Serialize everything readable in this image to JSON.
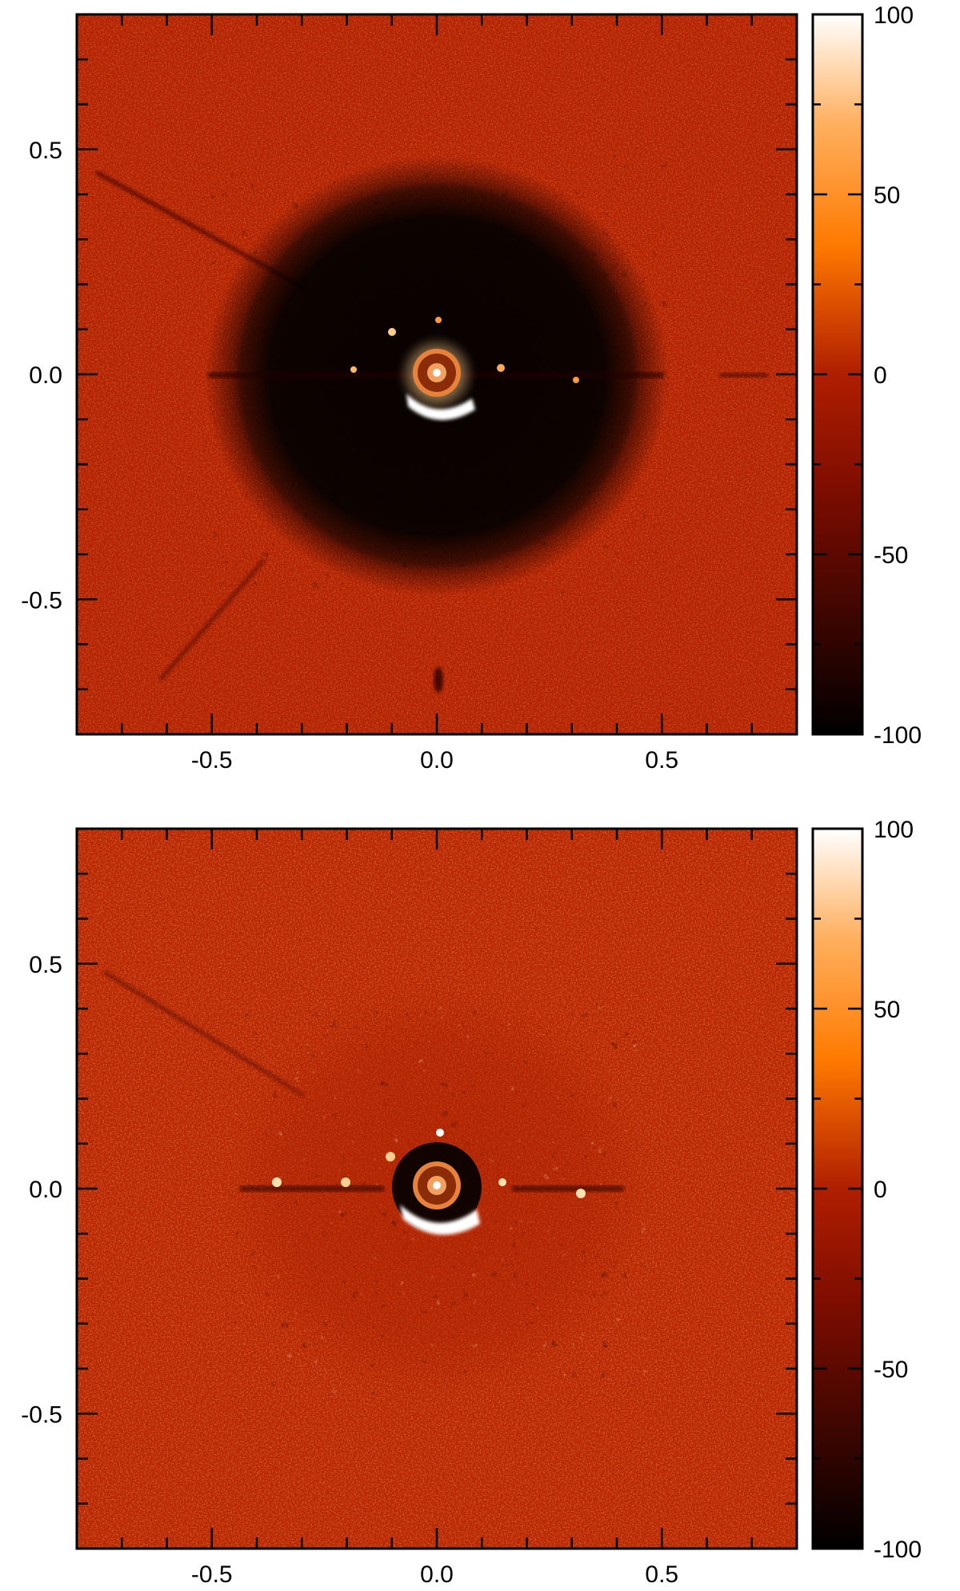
{
  "chart_data": [
    {
      "type": "heatmap",
      "colormap": "hot (black-red-orange-white)",
      "xlim": [
        -0.8,
        0.8
      ],
      "ylim": [
        -0.8,
        0.8
      ],
      "x_ticks": [
        -0.5,
        0.0,
        0.5
      ],
      "x_tick_labels": [
        "-0.5",
        "0.0",
        "0.5"
      ],
      "y_ticks": [
        0.5,
        0.0,
        -0.5
      ],
      "y_tick_labels": [
        "0.5",
        "0.0",
        "-0.5"
      ],
      "colorbar": {
        "range": [
          -100,
          100
        ],
        "ticks": [
          100,
          50,
          0,
          -50,
          -100
        ],
        "tick_labels": [
          "100",
          "50",
          "0",
          "-50",
          "-100"
        ]
      }
    },
    {
      "type": "heatmap",
      "colormap": "hot (black-red-orange-white)",
      "xlim": [
        -0.8,
        0.8
      ],
      "ylim": [
        -0.8,
        0.8
      ],
      "x_ticks": [
        -0.5,
        0.0,
        0.5
      ],
      "x_tick_labels": [
        "-0.5",
        "0.0",
        "0.5"
      ],
      "y_ticks": [
        0.5,
        0.0,
        -0.5
      ],
      "y_tick_labels": [
        "0.5",
        "0.0",
        "-0.5"
      ],
      "colorbar": {
        "range": [
          -100,
          100
        ],
        "ticks": [
          100,
          50,
          0,
          -50,
          -100
        ],
        "tick_labels": [
          "100",
          "50",
          "0",
          "-50",
          "-100"
        ]
      }
    }
  ]
}
